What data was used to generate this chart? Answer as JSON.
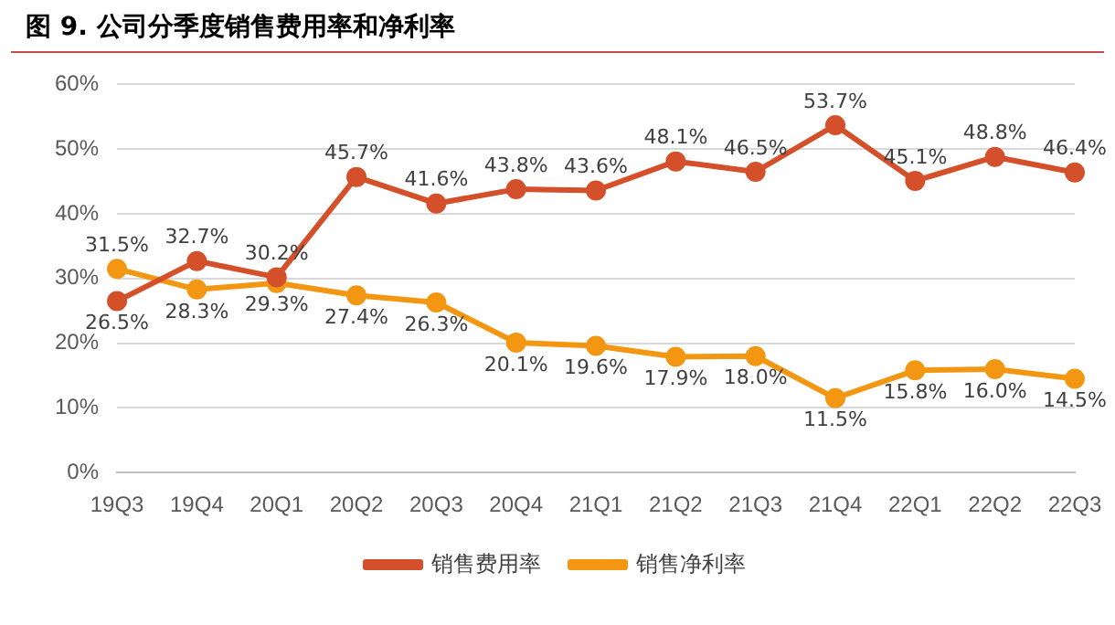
{
  "chart_data": {
    "type": "line",
    "title": "图 9. 公司分季度销售费用率和净利率",
    "categories": [
      "19Q3",
      "19Q4",
      "20Q1",
      "20Q2",
      "20Q3",
      "20Q4",
      "21Q1",
      "21Q2",
      "21Q3",
      "21Q4",
      "22Q1",
      "22Q2",
      "22Q3"
    ],
    "series": [
      {
        "name": "销售费用率",
        "color": "#d4502a",
        "values": [
          26.5,
          32.7,
          30.2,
          45.7,
          41.6,
          43.8,
          43.6,
          48.1,
          46.5,
          53.7,
          45.1,
          48.8,
          46.4
        ],
        "value_labels": [
          "26.5%",
          "32.7%",
          "30.2%",
          "45.7%",
          "41.6%",
          "43.8%",
          "43.6%",
          "48.1%",
          "46.5%",
          "53.7%",
          "45.1%",
          "48.8%",
          "46.4%"
        ]
      },
      {
        "name": "销售净利率",
        "color": "#f39712",
        "values": [
          31.5,
          28.3,
          29.3,
          27.4,
          26.3,
          20.1,
          19.6,
          17.9,
          18.0,
          11.5,
          15.8,
          16.0,
          14.5
        ],
        "value_labels": [
          "31.5%",
          "28.3%",
          "29.3%",
          "27.4%",
          "26.3%",
          "20.1%",
          "19.6%",
          "17.9%",
          "18.0%",
          "11.5%",
          "15.8%",
          "16.0%",
          "14.5%"
        ]
      }
    ],
    "ylim": [
      0,
      60
    ],
    "yticks": [
      {
        "value": 0,
        "label": "0%"
      },
      {
        "value": 10,
        "label": "10%"
      },
      {
        "value": 20,
        "label": "20%"
      },
      {
        "value": 30,
        "label": "30%"
      },
      {
        "value": 40,
        "label": "40%"
      },
      {
        "value": 50,
        "label": "50%"
      },
      {
        "value": 60,
        "label": "60%"
      }
    ],
    "grid": "y",
    "legend": "bottom",
    "marker": "circle",
    "line_style": "solid"
  }
}
